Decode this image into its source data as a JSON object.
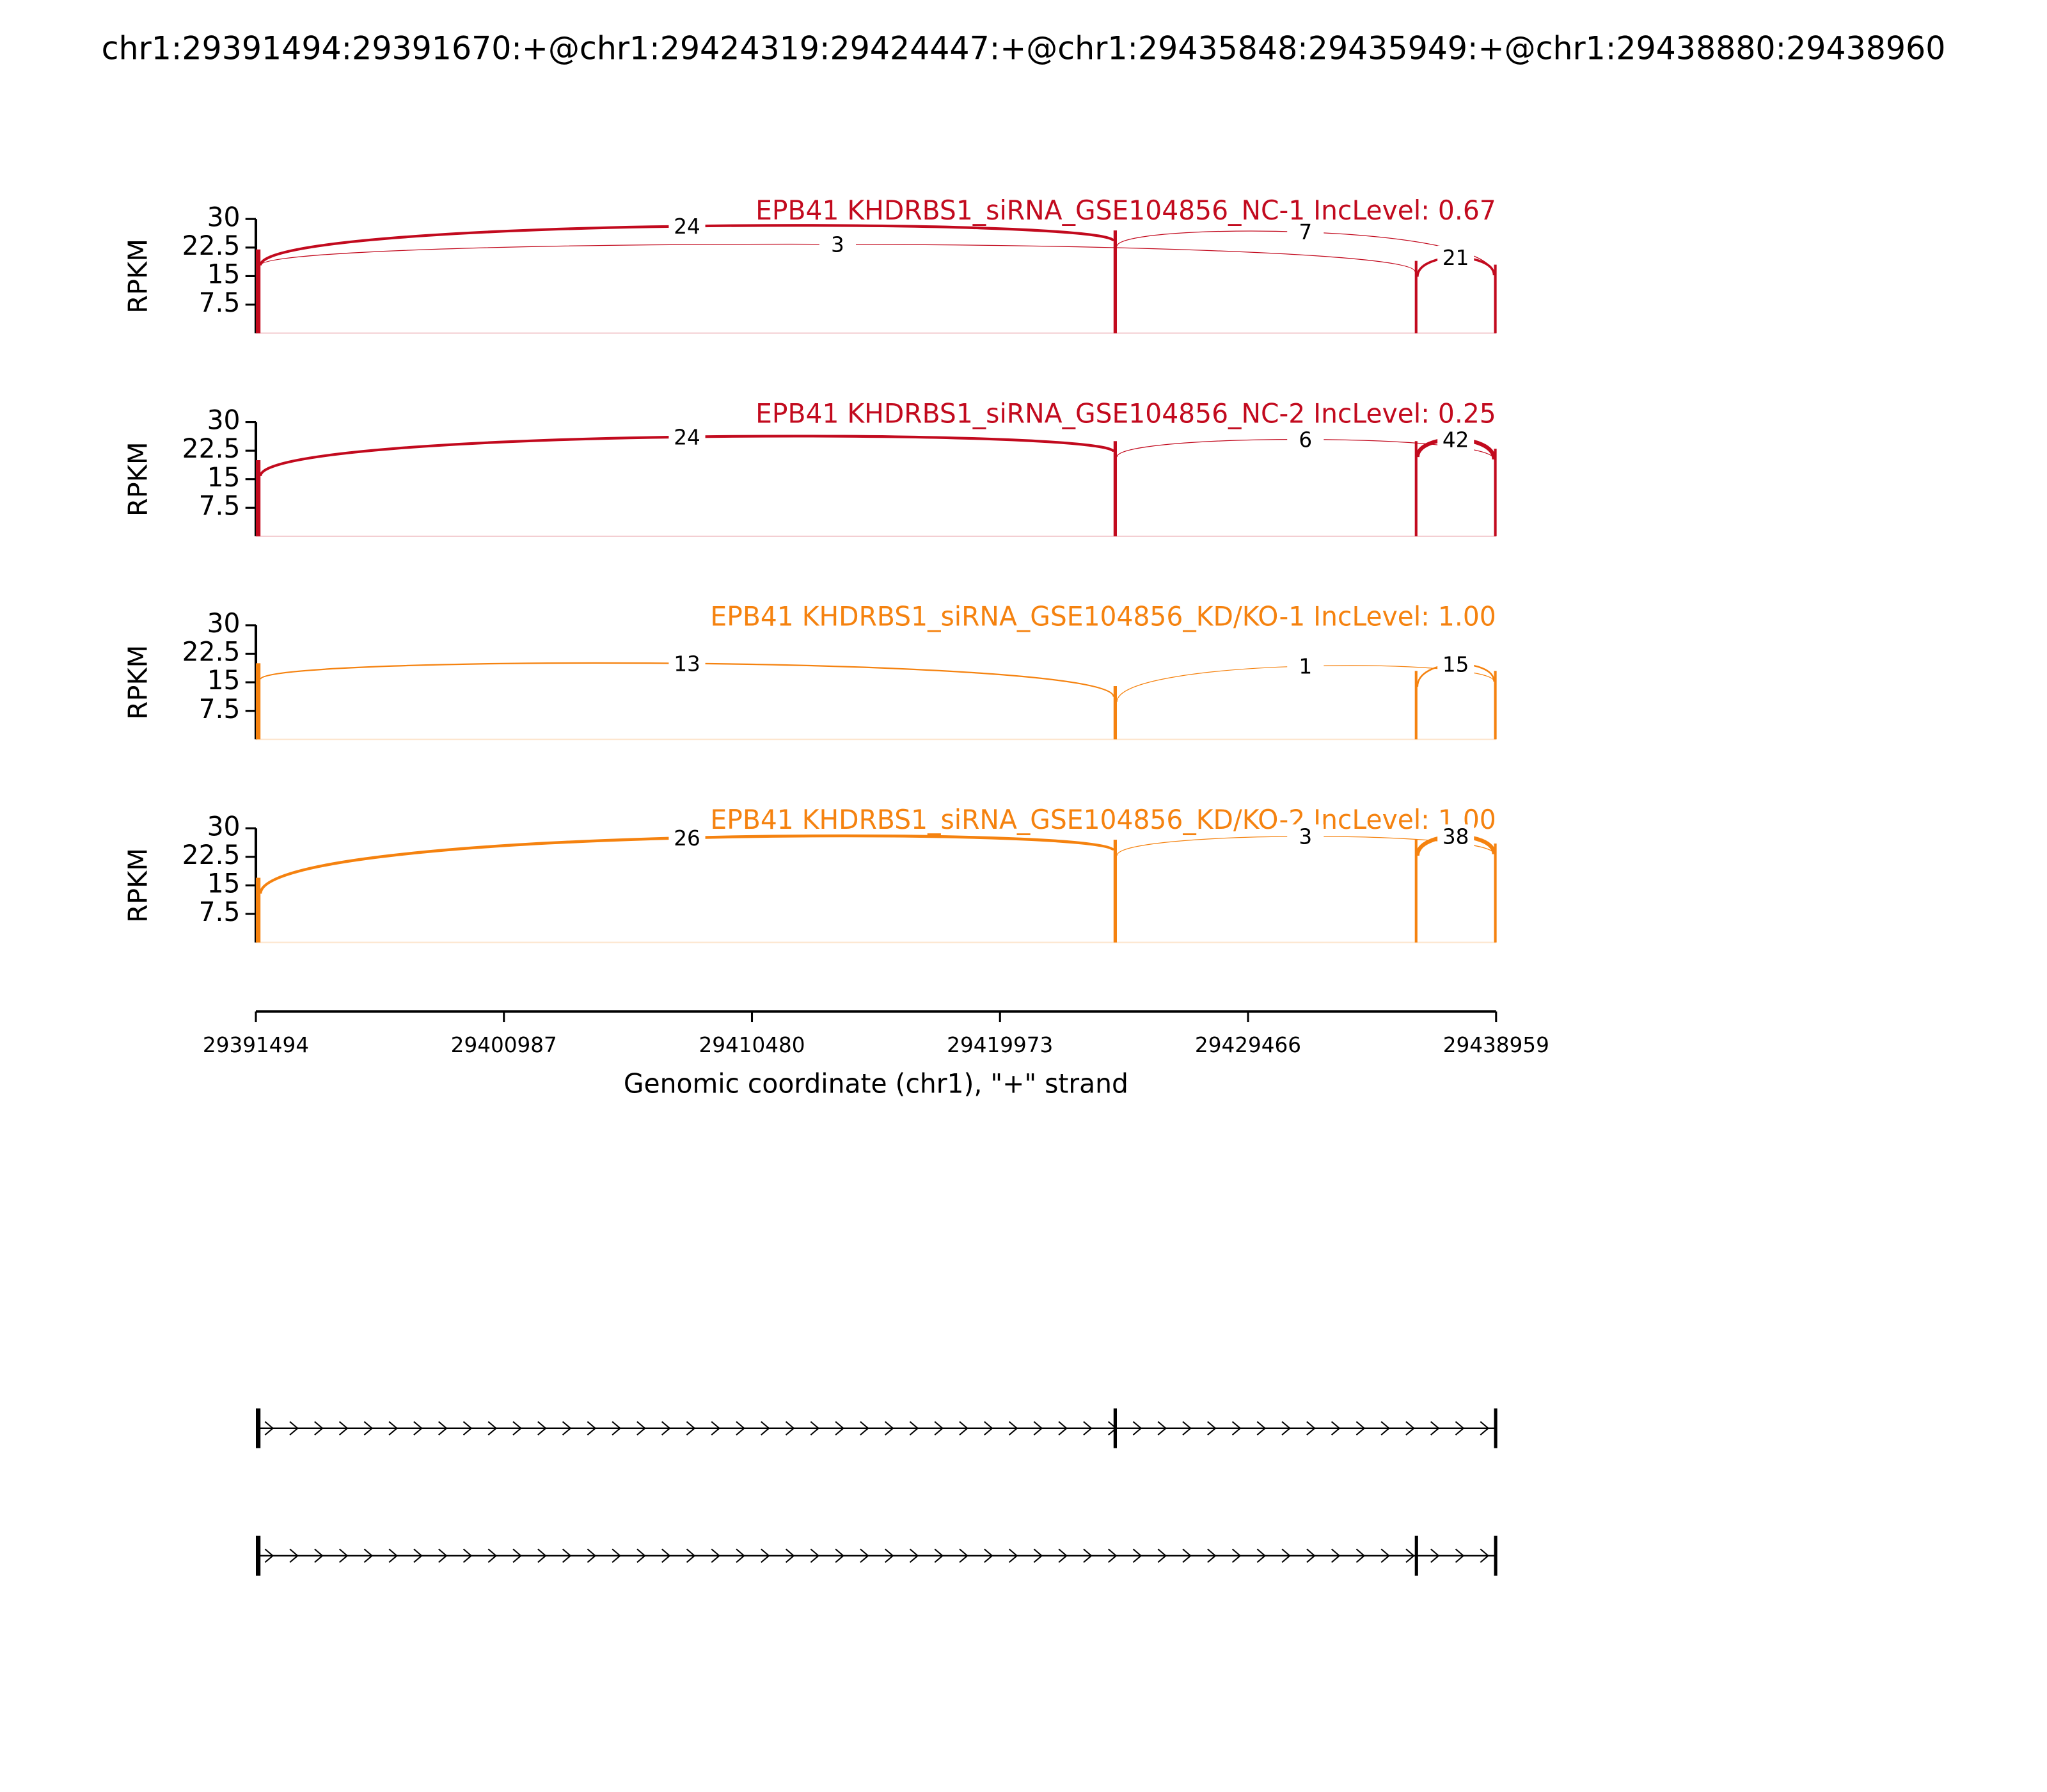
{
  "title": "chr1:29391494:29391670:+@chr1:29424319:29424447:+@chr1:29435848:29435949:+@chr1:29438880:29438960",
  "xlabel": "Genomic coordinate (chr1), \"+\" strand",
  "xlim": [
    29391494,
    29438959
  ],
  "xticks": [
    29391494,
    29400987,
    29410480,
    29419973,
    29429466,
    29438959
  ],
  "exons": [
    [
      29391494,
      29391670
    ],
    [
      29424319,
      29424447
    ],
    [
      29435848,
      29435949
    ],
    [
      29438880,
      29438960
    ]
  ],
  "isoforms": [
    [
      0,
      1,
      3
    ],
    [
      0,
      2,
      3
    ]
  ],
  "chart_data": [
    {
      "type": "sashimi",
      "title": "EPB41 KHDRBS1_siRNA_GSE104856_NC-1 IncLevel: 0.67",
      "ylabel": "RPKM",
      "color": "#c20a1e",
      "ylim": [
        0,
        30
      ],
      "yticks": [
        7.5,
        15,
        22.5,
        30
      ],
      "coverage": [
        22,
        27,
        19,
        18
      ],
      "junctions": [
        {
          "from": 0,
          "to": 1,
          "count": 24
        },
        {
          "from": 0,
          "to": 2,
          "count": 3
        },
        {
          "from": 1,
          "to": 3,
          "count": 7
        },
        {
          "from": 2,
          "to": 3,
          "count": 21
        }
      ]
    },
    {
      "type": "sashimi",
      "title": "EPB41 KHDRBS1_siRNA_GSE104856_NC-2 IncLevel: 0.25",
      "ylabel": "RPKM",
      "color": "#c20a1e",
      "ylim": [
        0,
        30
      ],
      "yticks": [
        7.5,
        15,
        22.5,
        30
      ],
      "coverage": [
        20,
        25,
        25,
        23
      ],
      "junctions": [
        {
          "from": 0,
          "to": 1,
          "count": 24
        },
        {
          "from": 1,
          "to": 3,
          "count": 6
        },
        {
          "from": 2,
          "to": 3,
          "count": 42
        }
      ]
    },
    {
      "type": "sashimi",
      "title": "EPB41 KHDRBS1_siRNA_GSE104856_KD/KO-1 IncLevel: 1.00",
      "ylabel": "RPKM",
      "color": "#f5820f",
      "ylim": [
        0,
        30
      ],
      "yticks": [
        7.5,
        15,
        22.5,
        30
      ],
      "coverage": [
        20,
        14,
        18,
        18
      ],
      "junctions": [
        {
          "from": 0,
          "to": 1,
          "count": 13
        },
        {
          "from": 1,
          "to": 3,
          "count": 1
        },
        {
          "from": 2,
          "to": 3,
          "count": 15
        }
      ]
    },
    {
      "type": "sashimi",
      "title": "EPB41 KHDRBS1_siRNA_GSE104856_KD/KO-2 IncLevel: 1.00",
      "ylabel": "RPKM",
      "color": "#f5820f",
      "ylim": [
        0,
        30
      ],
      "yticks": [
        7.5,
        15,
        22.5,
        30
      ],
      "coverage": [
        17,
        27,
        27,
        26
      ],
      "junctions": [
        {
          "from": 0,
          "to": 1,
          "count": 26
        },
        {
          "from": 1,
          "to": 3,
          "count": 3
        },
        {
          "from": 2,
          "to": 3,
          "count": 38
        }
      ]
    }
  ]
}
